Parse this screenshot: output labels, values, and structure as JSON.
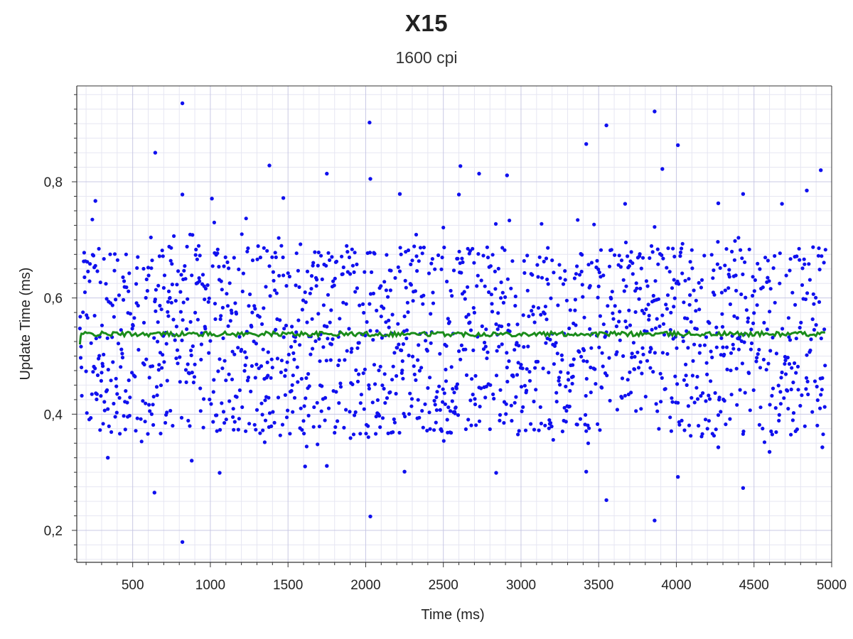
{
  "chart_data": {
    "type": "scatter",
    "title": "X15",
    "subtitle": "1600 cpi",
    "xlabel": "Time (ms)",
    "ylabel": "Update Time (ms)",
    "xlim": [
      140,
      5000
    ],
    "ylim": [
      0.145,
      0.965
    ],
    "x_ticks": [
      500,
      1000,
      1500,
      2000,
      2500,
      3000,
      3500,
      4000,
      4500,
      5000
    ],
    "x_tick_labels": [
      "500",
      "1000",
      "1500",
      "2000",
      "2500",
      "3000",
      "3500",
      "4000",
      "4500",
      "5000"
    ],
    "y_ticks": [
      0.2,
      0.4,
      0.6,
      0.8
    ],
    "y_tick_labels": [
      "0,2",
      "0,4",
      "0,6",
      "0,8"
    ],
    "grid": true,
    "colors": {
      "points": "#1010ee",
      "average": "#1a8c1a",
      "grid_major": "#c8c8e4",
      "grid_minor": "#e6e6f2"
    },
    "series": [
      {
        "type": "scatter",
        "sample_interval_ms": 2.5,
        "x_start": 160,
        "x_end": 4960,
        "distribution": "roughly uniform between 0.35 and 0.70 ms, centered near 0.538 ms",
        "outliers": [
          {
            "x": 820,
            "y": 0.935
          },
          {
            "x": 3860,
            "y": 0.921
          },
          {
            "x": 2025,
            "y": 0.902
          },
          {
            "x": 3550,
            "y": 0.897
          },
          {
            "x": 3420,
            "y": 0.865
          },
          {
            "x": 4010,
            "y": 0.863
          },
          {
            "x": 645,
            "y": 0.85
          },
          {
            "x": 1380,
            "y": 0.828
          },
          {
            "x": 2610,
            "y": 0.827
          },
          {
            "x": 3910,
            "y": 0.822
          },
          {
            "x": 4930,
            "y": 0.82
          },
          {
            "x": 1750,
            "y": 0.814
          },
          {
            "x": 2730,
            "y": 0.814
          },
          {
            "x": 2910,
            "y": 0.811
          },
          {
            "x": 2030,
            "y": 0.805
          },
          {
            "x": 4840,
            "y": 0.785
          },
          {
            "x": 2220,
            "y": 0.779
          },
          {
            "x": 4430,
            "y": 0.779
          },
          {
            "x": 820,
            "y": 0.778
          },
          {
            "x": 2600,
            "y": 0.778
          },
          {
            "x": 1010,
            "y": 0.771
          },
          {
            "x": 1470,
            "y": 0.772
          },
          {
            "x": 260,
            "y": 0.767
          },
          {
            "x": 4270,
            "y": 0.763
          },
          {
            "x": 3670,
            "y": 0.762
          },
          {
            "x": 4680,
            "y": 0.762
          },
          {
            "x": 640,
            "y": 0.265
          },
          {
            "x": 4430,
            "y": 0.273
          },
          {
            "x": 4010,
            "y": 0.292
          },
          {
            "x": 1060,
            "y": 0.299
          },
          {
            "x": 3420,
            "y": 0.301
          },
          {
            "x": 2250,
            "y": 0.301
          },
          {
            "x": 2840,
            "y": 0.299
          },
          {
            "x": 3550,
            "y": 0.252
          },
          {
            "x": 2030,
            "y": 0.224
          },
          {
            "x": 3860,
            "y": 0.217
          },
          {
            "x": 820,
            "y": 0.18
          },
          {
            "x": 880,
            "y": 0.32
          },
          {
            "x": 340,
            "y": 0.325
          },
          {
            "x": 1610,
            "y": 0.31
          },
          {
            "x": 1750,
            "y": 0.311
          },
          {
            "x": 4940,
            "y": 0.343
          },
          {
            "x": 4600,
            "y": 0.335
          },
          {
            "x": 4270,
            "y": 0.343
          }
        ]
      },
      {
        "type": "line",
        "level": 0.538,
        "start_value": 0.52
      }
    ]
  }
}
